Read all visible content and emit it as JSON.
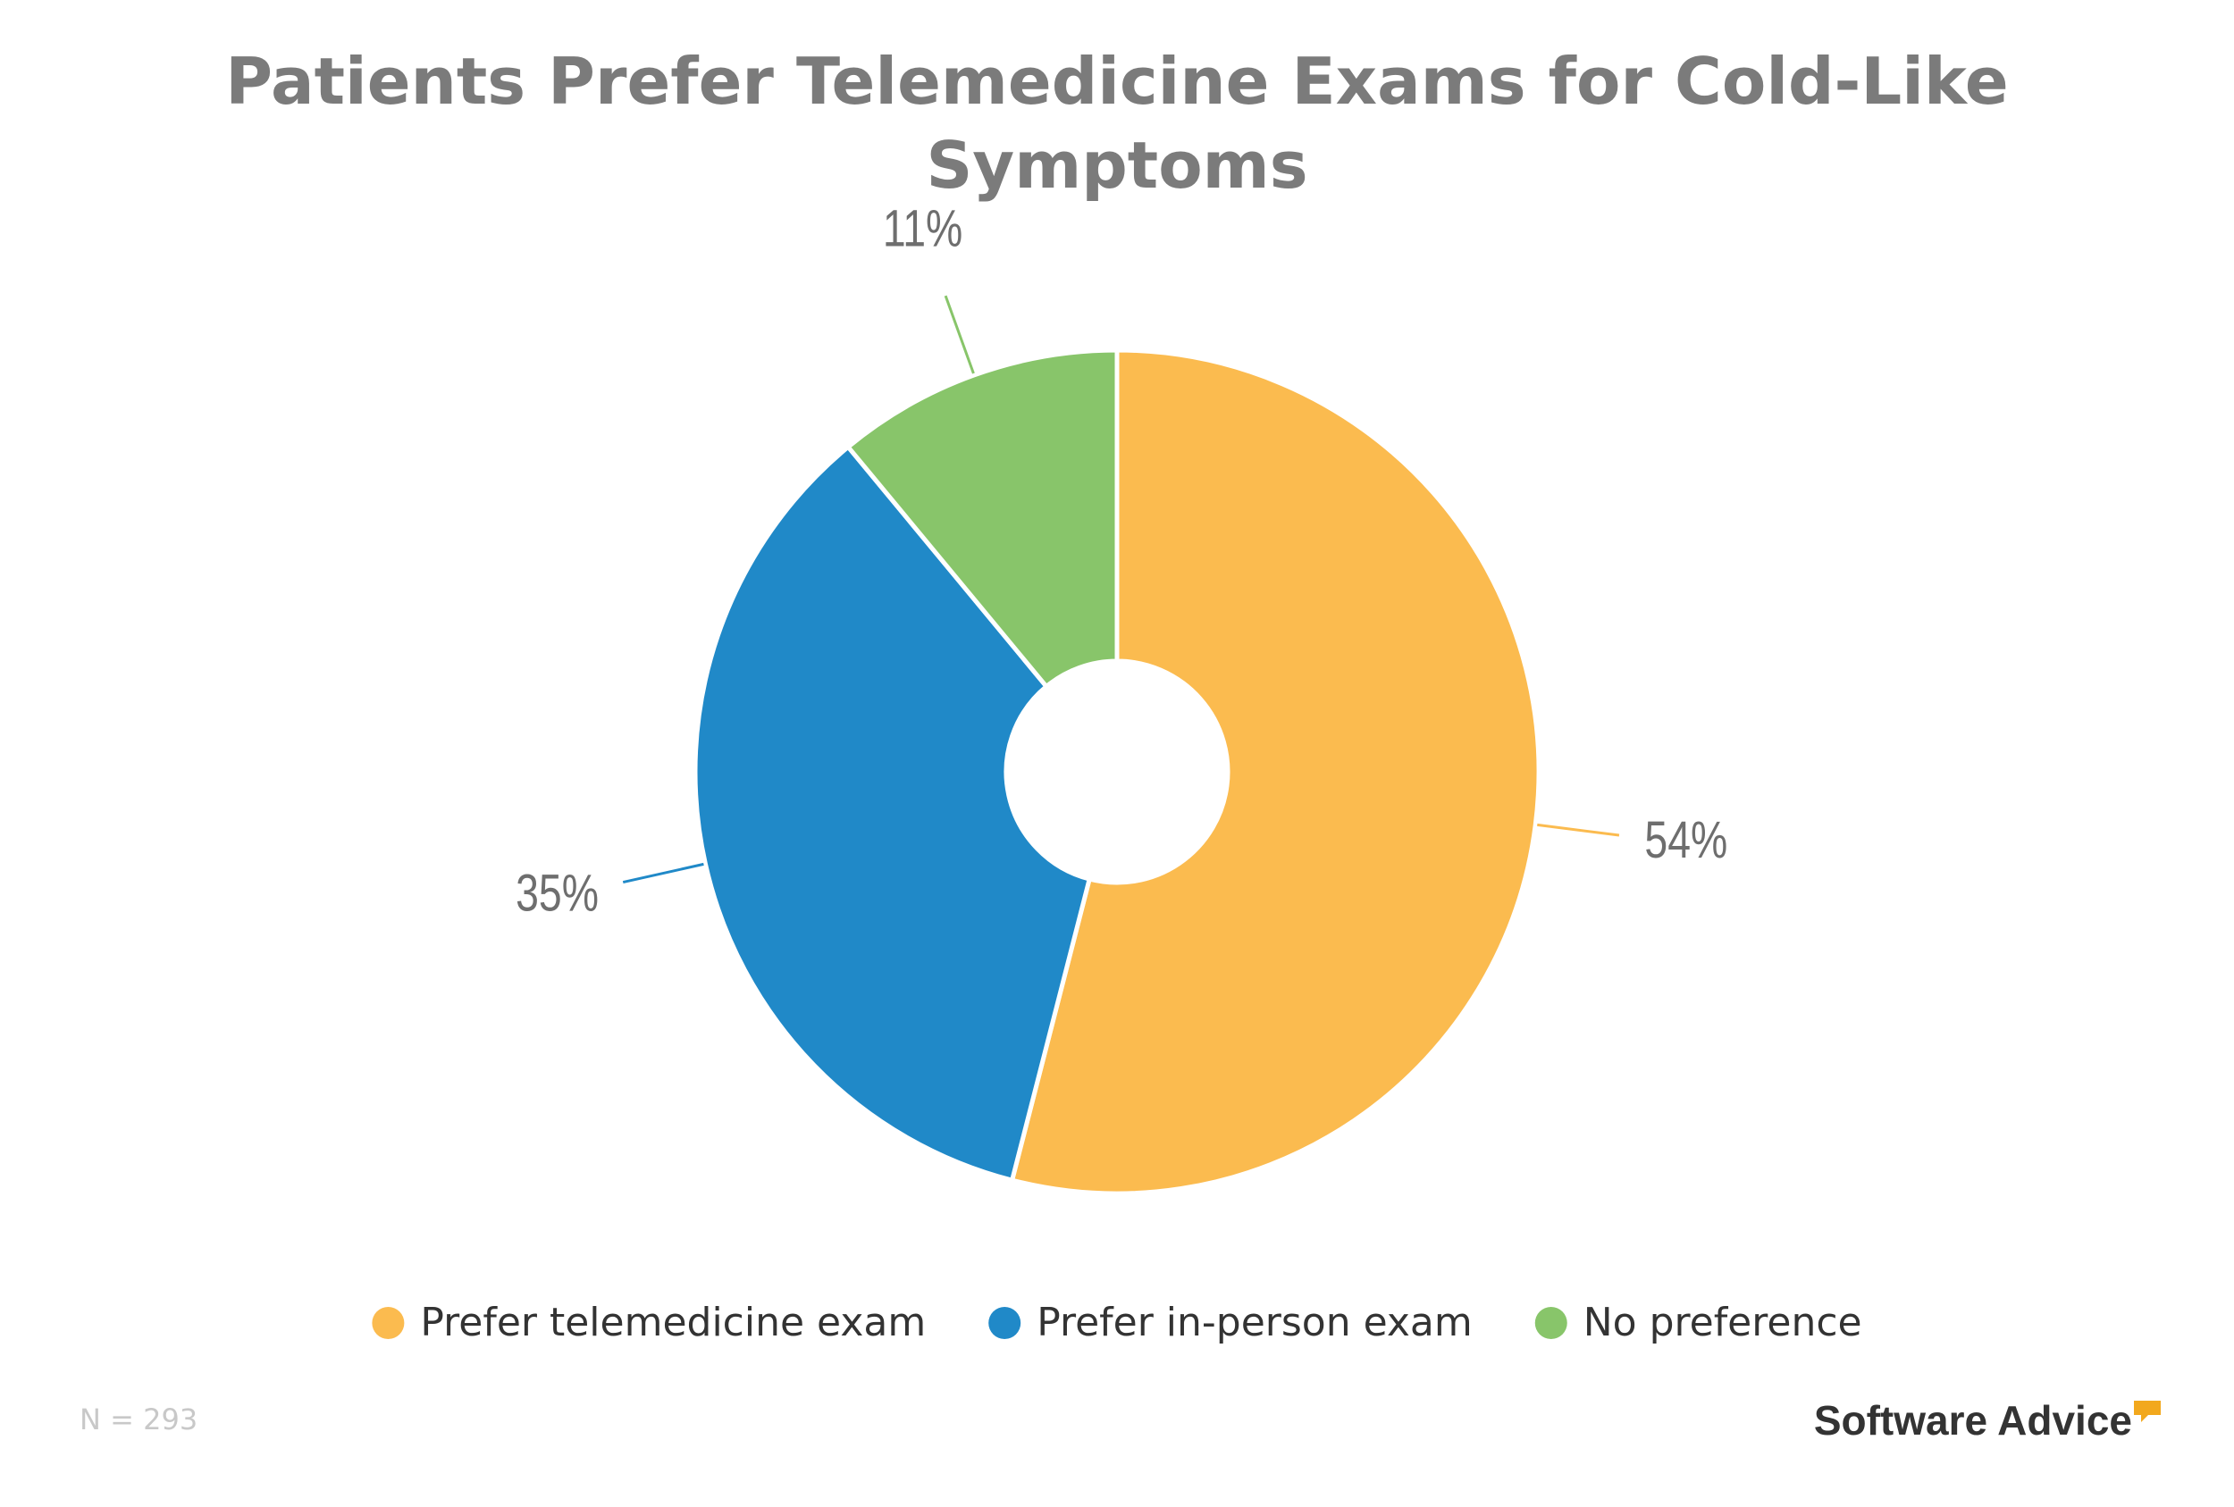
{
  "chart_data": {
    "type": "pie",
    "title": "Patients Prefer Telemedicine Exams for Cold-Like Symptoms",
    "categories": [
      "Prefer telemedicine exam",
      "Prefer in-person exam",
      "No preference"
    ],
    "values": [
      54,
      35,
      11
    ],
    "value_labels": [
      "54%",
      "35%",
      "11%"
    ],
    "colors": [
      "#fbbb4f",
      "#2089c8",
      "#88c56a"
    ],
    "donut": true,
    "legend": "bottom",
    "note": "N = 293"
  },
  "logo": "Software Advice"
}
